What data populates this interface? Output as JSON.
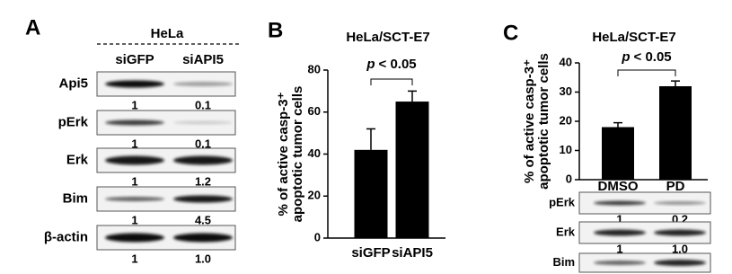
{
  "panel_a": {
    "letter": "A",
    "cell_line": "HeLa",
    "lanes": [
      "siGFP",
      "siAPI5"
    ],
    "rows": [
      {
        "label": "Api5",
        "values": [
          "1",
          "0.1"
        ]
      },
      {
        "label": "pErk",
        "values": [
          "1",
          "0.1"
        ]
      },
      {
        "label": "Erk",
        "values": [
          "1",
          "1.2"
        ]
      },
      {
        "label": "Bim",
        "values": [
          "1",
          "4.5"
        ]
      },
      {
        "label": "β-actin",
        "values": [
          "1",
          "1.0"
        ]
      }
    ]
  },
  "chart_data": [
    {
      "type": "bar",
      "panel": "B",
      "title": "HeLa/SCT-E7",
      "y_label": [
        "% of active casp-3⁺",
        "apoptotic tumor cells"
      ],
      "categories": [
        "siGFP",
        "siAPI5"
      ],
      "values": [
        42,
        65
      ],
      "errors": [
        10,
        5
      ],
      "color": "#000000",
      "ylim": [
        0,
        80
      ],
      "yticks": [
        0,
        20,
        40,
        60,
        80
      ],
      "annotation": {
        "symbol": "p",
        "text": "< 0.05"
      }
    },
    {
      "type": "bar",
      "panel": "C",
      "title": "HeLa/SCT-E7",
      "y_label": [
        "% of active casp-3⁺",
        "apoptotic tumor cells"
      ],
      "categories": [
        "DMSO",
        "PD"
      ],
      "values": [
        18,
        32
      ],
      "errors": [
        1.5,
        1.8
      ],
      "color": "#000000",
      "ylim": [
        0,
        40
      ],
      "yticks": [
        0,
        10,
        20,
        30,
        40
      ],
      "annotation": {
        "symbol": "p",
        "text": "< 0.05"
      }
    }
  ],
  "panel_c_blot": {
    "rows": [
      {
        "label": "pErk",
        "values": [
          "1",
          "0.2"
        ]
      },
      {
        "label": "Erk",
        "values": [
          "1",
          "1.0"
        ]
      },
      {
        "label": "Bim"
      }
    ]
  }
}
